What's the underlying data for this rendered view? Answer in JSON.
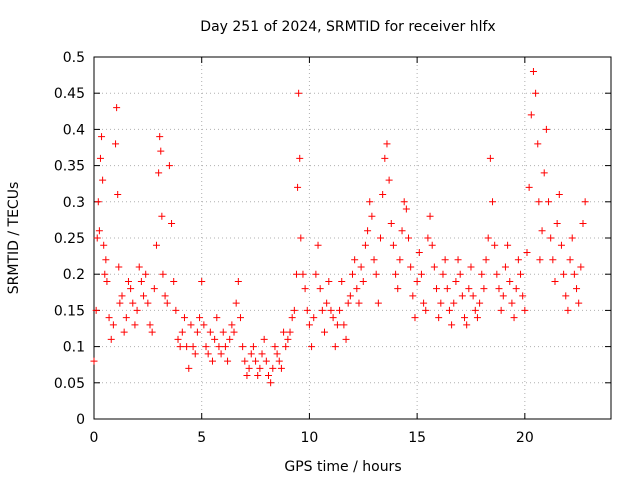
{
  "chart_data": {
    "type": "scatter",
    "title": "Day 251 of 2024, SRMTID for receiver hlfx",
    "xlabel": "GPS time / hours",
    "ylabel": "SRMTID / TECUs",
    "xlim": [
      0,
      24
    ],
    "ylim": [
      0,
      0.5
    ],
    "xticks": [
      0,
      5,
      10,
      15,
      20
    ],
    "xtick_labels": [
      "0",
      "5",
      "10",
      "15",
      "20"
    ],
    "yticks": [
      0,
      0.05,
      0.1,
      0.15,
      0.2,
      0.25,
      0.3,
      0.35,
      0.4,
      0.45,
      0.5
    ],
    "ytick_labels": [
      "0",
      "0.05",
      "0.1",
      "0.15",
      "0.2",
      "0.25",
      "0.3",
      "0.35",
      "0.4",
      "0.45",
      "0.5"
    ],
    "grid": true,
    "marker": "+",
    "series": [
      {
        "name": "SRMTID",
        "color": "#ff0000",
        "x": [
          0.0,
          0.1,
          0.15,
          0.2,
          0.25,
          0.3,
          0.35,
          0.4,
          0.45,
          0.5,
          0.55,
          0.6,
          0.7,
          0.8,
          0.9,
          1.0,
          1.05,
          1.1,
          1.15,
          1.2,
          1.3,
          1.4,
          1.5,
          1.6,
          1.7,
          1.8,
          1.9,
          2.0,
          2.1,
          2.2,
          2.3,
          2.4,
          2.5,
          2.6,
          2.7,
          2.8,
          2.9,
          3.0,
          3.05,
          3.1,
          3.15,
          3.2,
          3.3,
          3.4,
          3.5,
          3.6,
          3.7,
          3.8,
          3.9,
          4.0,
          4.1,
          4.2,
          4.3,
          4.4,
          4.5,
          4.6,
          4.7,
          4.8,
          4.9,
          5.0,
          5.1,
          5.2,
          5.3,
          5.4,
          5.5,
          5.6,
          5.7,
          5.8,
          5.9,
          6.0,
          6.1,
          6.2,
          6.3,
          6.4,
          6.5,
          6.6,
          6.7,
          6.8,
          6.9,
          7.0,
          7.1,
          7.2,
          7.3,
          7.4,
          7.5,
          7.6,
          7.7,
          7.8,
          7.9,
          8.0,
          8.1,
          8.2,
          8.3,
          8.4,
          8.5,
          8.6,
          8.7,
          8.8,
          8.9,
          9.0,
          9.1,
          9.2,
          9.3,
          9.4,
          9.45,
          9.5,
          9.55,
          9.6,
          9.7,
          9.8,
          9.9,
          10.0,
          10.1,
          10.2,
          10.3,
          10.4,
          10.5,
          10.6,
          10.7,
          10.8,
          10.9,
          11.0,
          11.1,
          11.2,
          11.3,
          11.4,
          11.5,
          11.6,
          11.7,
          11.8,
          11.9,
          12.0,
          12.1,
          12.2,
          12.3,
          12.4,
          12.5,
          12.6,
          12.7,
          12.8,
          12.9,
          13.0,
          13.1,
          13.2,
          13.3,
          13.4,
          13.5,
          13.6,
          13.7,
          13.8,
          13.9,
          14.0,
          14.1,
          14.2,
          14.3,
          14.4,
          14.5,
          14.6,
          14.7,
          14.8,
          14.9,
          15.0,
          15.1,
          15.2,
          15.3,
          15.4,
          15.5,
          15.6,
          15.7,
          15.8,
          15.9,
          16.0,
          16.1,
          16.2,
          16.3,
          16.4,
          16.5,
          16.6,
          16.7,
          16.8,
          16.9,
          17.0,
          17.1,
          17.2,
          17.3,
          17.4,
          17.5,
          17.6,
          17.7,
          17.8,
          17.9,
          18.0,
          18.1,
          18.2,
          18.3,
          18.4,
          18.5,
          18.6,
          18.7,
          18.8,
          18.9,
          19.0,
          19.1,
          19.2,
          19.3,
          19.4,
          19.5,
          19.6,
          19.7,
          19.8,
          19.9,
          20.0,
          20.1,
          20.2,
          20.3,
          20.4,
          20.5,
          20.6,
          20.65,
          20.7,
          20.8,
          20.9,
          21.0,
          21.1,
          21.2,
          21.3,
          21.4,
          21.5,
          21.6,
          21.7,
          21.8,
          21.9,
          22.0,
          22.1,
          22.2,
          22.3,
          22.4,
          22.5,
          22.6,
          22.7,
          22.8
        ],
        "y": [
          0.08,
          0.15,
          0.25,
          0.3,
          0.26,
          0.36,
          0.39,
          0.33,
          0.24,
          0.2,
          0.22,
          0.19,
          0.14,
          0.11,
          0.13,
          0.38,
          0.43,
          0.31,
          0.21,
          0.16,
          0.17,
          0.12,
          0.14,
          0.19,
          0.18,
          0.16,
          0.13,
          0.15,
          0.21,
          0.19,
          0.17,
          0.2,
          0.16,
          0.13,
          0.12,
          0.18,
          0.24,
          0.34,
          0.39,
          0.37,
          0.28,
          0.2,
          0.17,
          0.16,
          0.35,
          0.27,
          0.19,
          0.15,
          0.11,
          0.1,
          0.12,
          0.14,
          0.1,
          0.07,
          0.13,
          0.1,
          0.09,
          0.12,
          0.14,
          0.19,
          0.13,
          0.1,
          0.09,
          0.12,
          0.08,
          0.11,
          0.14,
          0.1,
          0.09,
          0.12,
          0.1,
          0.08,
          0.11,
          0.13,
          0.12,
          0.16,
          0.19,
          0.14,
          0.1,
          0.08,
          0.06,
          0.07,
          0.09,
          0.1,
          0.08,
          0.06,
          0.07,
          0.09,
          0.11,
          0.08,
          0.06,
          0.05,
          0.07,
          0.1,
          0.09,
          0.08,
          0.07,
          0.12,
          0.1,
          0.11,
          0.12,
          0.14,
          0.15,
          0.2,
          0.32,
          0.45,
          0.36,
          0.25,
          0.2,
          0.18,
          0.15,
          0.13,
          0.1,
          0.14,
          0.2,
          0.24,
          0.18,
          0.15,
          0.12,
          0.16,
          0.19,
          0.15,
          0.14,
          0.1,
          0.13,
          0.15,
          0.19,
          0.13,
          0.11,
          0.16,
          0.17,
          0.2,
          0.22,
          0.18,
          0.16,
          0.21,
          0.19,
          0.24,
          0.26,
          0.3,
          0.28,
          0.22,
          0.2,
          0.16,
          0.25,
          0.31,
          0.36,
          0.38,
          0.33,
          0.27,
          0.24,
          0.2,
          0.18,
          0.22,
          0.26,
          0.3,
          0.29,
          0.25,
          0.21,
          0.17,
          0.14,
          0.19,
          0.23,
          0.2,
          0.16,
          0.15,
          0.25,
          0.28,
          0.24,
          0.21,
          0.18,
          0.14,
          0.16,
          0.2,
          0.22,
          0.18,
          0.15,
          0.13,
          0.16,
          0.19,
          0.22,
          0.2,
          0.17,
          0.14,
          0.13,
          0.18,
          0.21,
          0.17,
          0.15,
          0.14,
          0.16,
          0.2,
          0.18,
          0.22,
          0.25,
          0.36,
          0.3,
          0.24,
          0.2,
          0.18,
          0.15,
          0.17,
          0.21,
          0.24,
          0.19,
          0.16,
          0.14,
          0.18,
          0.22,
          0.2,
          0.17,
          0.15,
          0.23,
          0.32,
          0.42,
          0.48,
          0.45,
          0.38,
          0.3,
          0.22,
          0.26,
          0.34,
          0.4,
          0.3,
          0.25,
          0.22,
          0.19,
          0.27,
          0.31,
          0.24,
          0.2,
          0.17,
          0.15,
          0.22,
          0.25,
          0.2,
          0.18,
          0.16,
          0.21,
          0.27,
          0.3
        ]
      }
    ]
  }
}
